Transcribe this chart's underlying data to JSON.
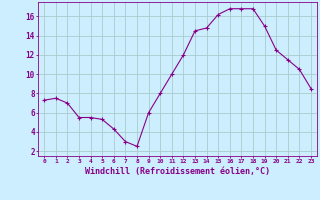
{
  "x": [
    0,
    1,
    2,
    3,
    4,
    5,
    6,
    7,
    8,
    9,
    10,
    11,
    12,
    13,
    14,
    15,
    16,
    17,
    18,
    19,
    20,
    21,
    22,
    23
  ],
  "y": [
    7.3,
    7.5,
    7.0,
    5.5,
    5.5,
    5.3,
    4.3,
    3.0,
    2.5,
    6.0,
    8.0,
    10.0,
    12.0,
    14.5,
    14.8,
    16.2,
    16.8,
    16.8,
    16.8,
    15.0,
    12.5,
    11.5,
    10.5,
    8.5
  ],
  "line_color": "#880088",
  "marker": "+",
  "marker_size": 3,
  "marker_lw": 0.8,
  "bg_color": "#cceeff",
  "grid_color": "#aacccc",
  "xlabel": "Windchill (Refroidissement éolien,°C)",
  "xlabel_color": "#880088",
  "ytick_labels": [
    "2",
    "4",
    "6",
    "8",
    "10",
    "12",
    "14",
    "16"
  ],
  "ytick_values": [
    2,
    4,
    6,
    8,
    10,
    12,
    14,
    16
  ],
  "ylim": [
    1.5,
    17.5
  ],
  "xlim": [
    -0.5,
    23.5
  ],
  "xtick_labels": [
    "0",
    "1",
    "2",
    "3",
    "4",
    "5",
    "6",
    "7",
    "8",
    "9",
    "10",
    "11",
    "12",
    "13",
    "14",
    "15",
    "16",
    "17",
    "18",
    "19",
    "20",
    "21",
    "22",
    "23"
  ],
  "tick_color": "#880088",
  "axis_color": "#880088",
  "font_name": "monospace",
  "xtick_fontsize": 4.5,
  "ytick_fontsize": 5.5,
  "xlabel_fontsize": 6.0,
  "linewidth": 0.8
}
